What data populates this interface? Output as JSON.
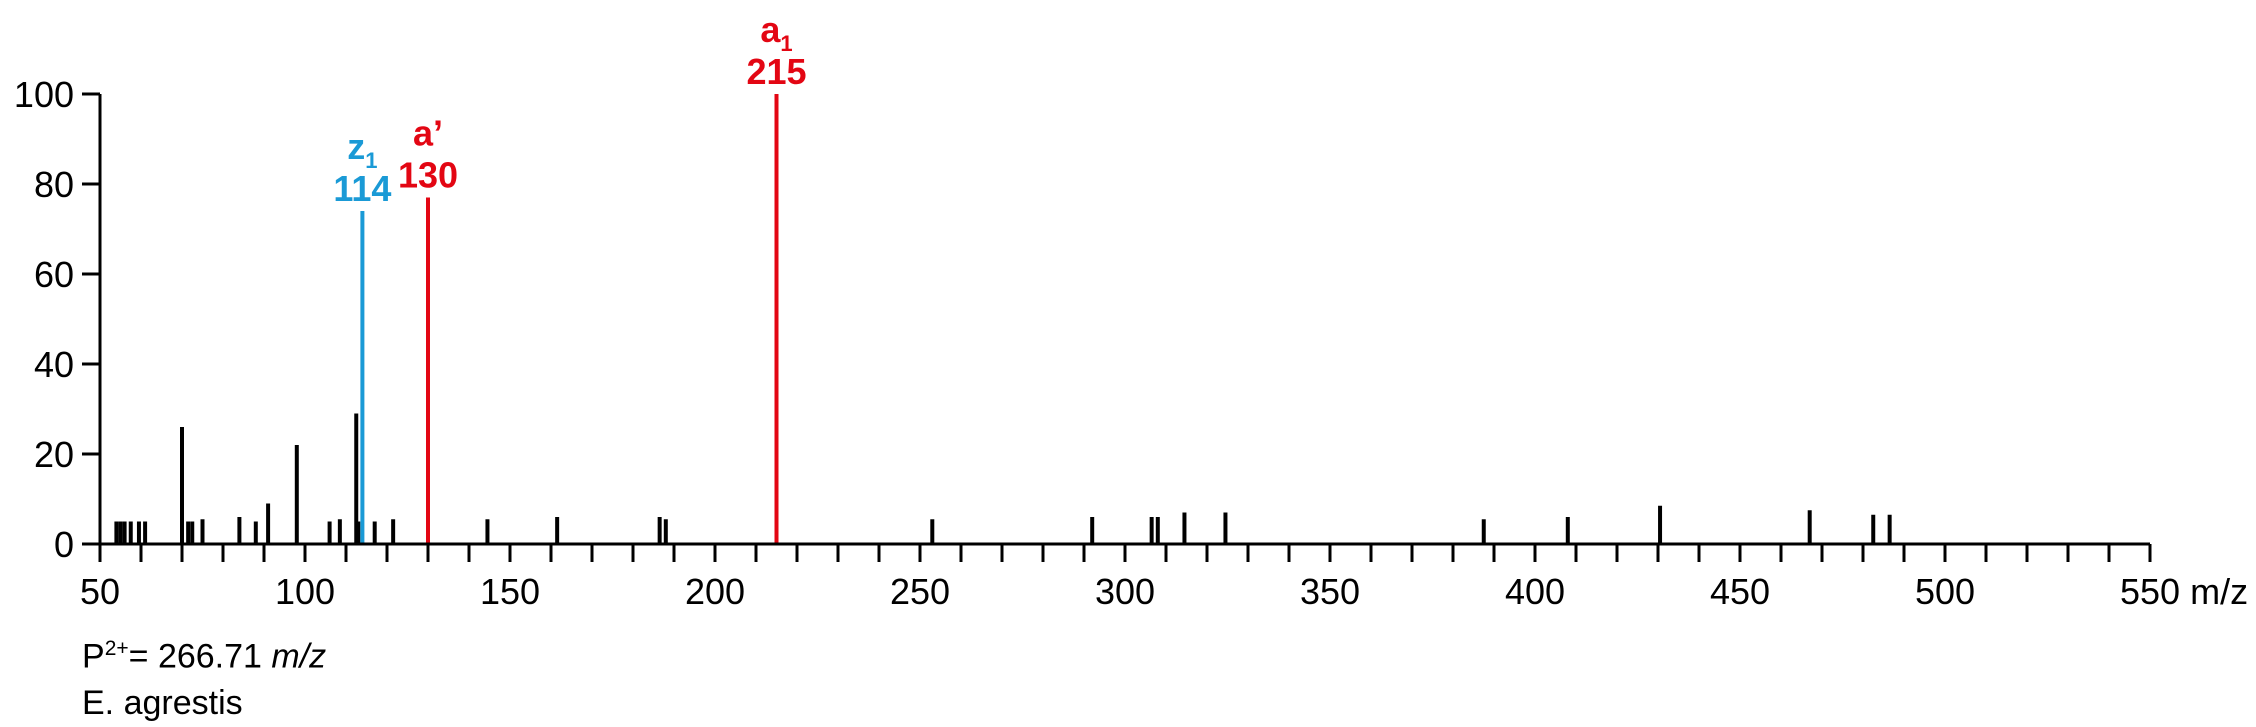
{
  "chart_data": {
    "type": "bar",
    "title": "",
    "xlabel": "m/z",
    "ylabel": "",
    "xlim": [
      50,
      550
    ],
    "ylim": [
      0,
      100
    ],
    "x_ticks": [
      50,
      100,
      150,
      200,
      250,
      300,
      350,
      400,
      450,
      500,
      550
    ],
    "x_minor_step": 10,
    "y_ticks": [
      0,
      20,
      40,
      60,
      80,
      100
    ],
    "grid": false,
    "legend": "none",
    "colors": {
      "default": "#000000",
      "a_ion": "#e30613",
      "z_ion": "#1a9ad6"
    },
    "peaks": [
      {
        "mz": 54.0,
        "intensity": 5
      },
      {
        "mz": 55.0,
        "intensity": 5
      },
      {
        "mz": 56.0,
        "intensity": 5
      },
      {
        "mz": 57.5,
        "intensity": 5
      },
      {
        "mz": 59.5,
        "intensity": 5
      },
      {
        "mz": 61.0,
        "intensity": 5
      },
      {
        "mz": 70.0,
        "intensity": 26
      },
      {
        "mz": 71.5,
        "intensity": 5
      },
      {
        "mz": 72.5,
        "intensity": 5
      },
      {
        "mz": 75.0,
        "intensity": 5.5
      },
      {
        "mz": 84.0,
        "intensity": 6
      },
      {
        "mz": 88.0,
        "intensity": 5
      },
      {
        "mz": 91.0,
        "intensity": 9
      },
      {
        "mz": 98.0,
        "intensity": 22
      },
      {
        "mz": 106.0,
        "intensity": 5
      },
      {
        "mz": 108.5,
        "intensity": 5.5
      },
      {
        "mz": 112.5,
        "intensity": 29
      },
      {
        "mz": 113.0,
        "intensity": 5
      },
      {
        "mz": 114.0,
        "intensity": 74,
        "color": "z_ion"
      },
      {
        "mz": 117.0,
        "intensity": 5
      },
      {
        "mz": 121.5,
        "intensity": 5.5
      },
      {
        "mz": 130.0,
        "intensity": 77,
        "color": "a_ion"
      },
      {
        "mz": 144.5,
        "intensity": 5.5
      },
      {
        "mz": 161.5,
        "intensity": 6
      },
      {
        "mz": 186.5,
        "intensity": 6
      },
      {
        "mz": 188.0,
        "intensity": 5.5
      },
      {
        "mz": 215.0,
        "intensity": 100,
        "color": "a_ion"
      },
      {
        "mz": 253.0,
        "intensity": 5.5
      },
      {
        "mz": 292.0,
        "intensity": 6
      },
      {
        "mz": 306.5,
        "intensity": 6
      },
      {
        "mz": 308.0,
        "intensity": 6
      },
      {
        "mz": 314.5,
        "intensity": 7
      },
      {
        "mz": 324.5,
        "intensity": 7
      },
      {
        "mz": 387.5,
        "intensity": 5.5
      },
      {
        "mz": 408.0,
        "intensity": 6
      },
      {
        "mz": 430.5,
        "intensity": 8.5
      },
      {
        "mz": 467.0,
        "intensity": 7.5
      },
      {
        "mz": 482.5,
        "intensity": 6.5
      },
      {
        "mz": 486.5,
        "intensity": 6.5
      }
    ],
    "annotations": [
      {
        "ion": "z",
        "sub": "1",
        "value": "114",
        "mz": 114,
        "intensity": 74,
        "color": "z_ion"
      },
      {
        "ion": "a’",
        "sub": "",
        "value": "130",
        "mz": 130,
        "intensity": 77,
        "color": "a_ion"
      },
      {
        "ion": "a",
        "sub": "1",
        "value": "215",
        "mz": 215,
        "intensity": 100,
        "color": "a_ion"
      }
    ]
  },
  "footer": {
    "precursor_prefix": "P",
    "precursor_charge": "2+",
    "precursor_value": "= 266.71 ",
    "precursor_unit": "m/z",
    "species": "E. agrestis"
  }
}
